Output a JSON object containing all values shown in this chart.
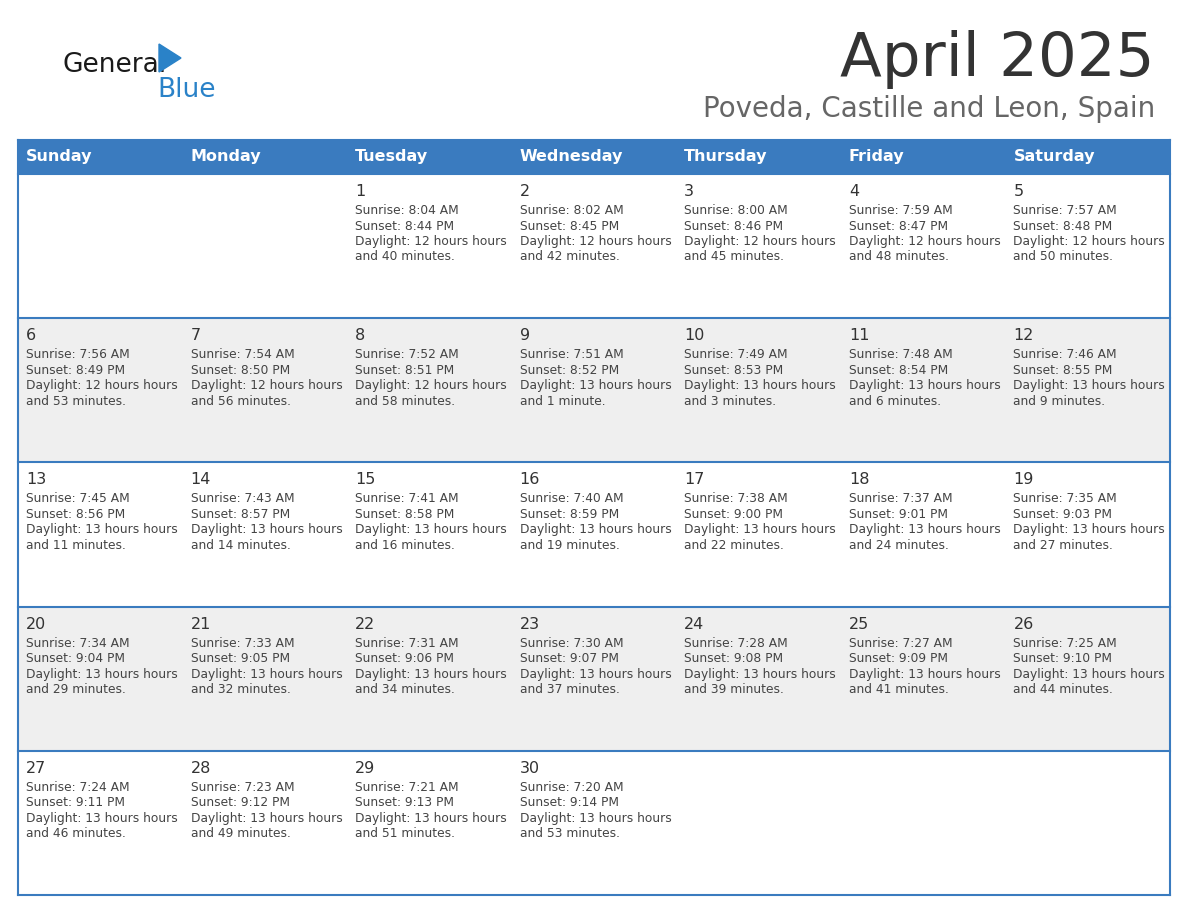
{
  "title": "April 2025",
  "subtitle": "Poveda, Castille and Leon, Spain",
  "days_of_week": [
    "Sunday",
    "Monday",
    "Tuesday",
    "Wednesday",
    "Thursday",
    "Friday",
    "Saturday"
  ],
  "header_bg": "#3a7bbf",
  "header_text": "#ffffff",
  "row_bg_white": "#ffffff",
  "row_bg_gray": "#efefef",
  "border_color": "#3a7bbf",
  "sep_line_color": "#3a7bbf",
  "day_num_color": "#333333",
  "cell_text_color": "#444444",
  "title_color": "#333333",
  "subtitle_color": "#666666",
  "logo_general_color": "#1a1a1a",
  "logo_blue_color": "#2a82c8",
  "logo_triangle_color": "#2a82c8",
  "weeks": [
    {
      "row_bg": "#ffffff",
      "days": [
        {
          "date": "",
          "sunrise": "",
          "sunset": "",
          "daylight": ""
        },
        {
          "date": "",
          "sunrise": "",
          "sunset": "",
          "daylight": ""
        },
        {
          "date": "1",
          "sunrise": "8:04 AM",
          "sunset": "8:44 PM",
          "daylight": "12 hours and 40 minutes."
        },
        {
          "date": "2",
          "sunrise": "8:02 AM",
          "sunset": "8:45 PM",
          "daylight": "12 hours and 42 minutes."
        },
        {
          "date": "3",
          "sunrise": "8:00 AM",
          "sunset": "8:46 PM",
          "daylight": "12 hours and 45 minutes."
        },
        {
          "date": "4",
          "sunrise": "7:59 AM",
          "sunset": "8:47 PM",
          "daylight": "12 hours and 48 minutes."
        },
        {
          "date": "5",
          "sunrise": "7:57 AM",
          "sunset": "8:48 PM",
          "daylight": "12 hours and 50 minutes."
        }
      ]
    },
    {
      "row_bg": "#efefef",
      "days": [
        {
          "date": "6",
          "sunrise": "7:56 AM",
          "sunset": "8:49 PM",
          "daylight": "12 hours and 53 minutes."
        },
        {
          "date": "7",
          "sunrise": "7:54 AM",
          "sunset": "8:50 PM",
          "daylight": "12 hours and 56 minutes."
        },
        {
          "date": "8",
          "sunrise": "7:52 AM",
          "sunset": "8:51 PM",
          "daylight": "12 hours and 58 minutes."
        },
        {
          "date": "9",
          "sunrise": "7:51 AM",
          "sunset": "8:52 PM",
          "daylight": "13 hours and 1 minute."
        },
        {
          "date": "10",
          "sunrise": "7:49 AM",
          "sunset": "8:53 PM",
          "daylight": "13 hours and 3 minutes."
        },
        {
          "date": "11",
          "sunrise": "7:48 AM",
          "sunset": "8:54 PM",
          "daylight": "13 hours and 6 minutes."
        },
        {
          "date": "12",
          "sunrise": "7:46 AM",
          "sunset": "8:55 PM",
          "daylight": "13 hours and 9 minutes."
        }
      ]
    },
    {
      "row_bg": "#ffffff",
      "days": [
        {
          "date": "13",
          "sunrise": "7:45 AM",
          "sunset": "8:56 PM",
          "daylight": "13 hours and 11 minutes."
        },
        {
          "date": "14",
          "sunrise": "7:43 AM",
          "sunset": "8:57 PM",
          "daylight": "13 hours and 14 minutes."
        },
        {
          "date": "15",
          "sunrise": "7:41 AM",
          "sunset": "8:58 PM",
          "daylight": "13 hours and 16 minutes."
        },
        {
          "date": "16",
          "sunrise": "7:40 AM",
          "sunset": "8:59 PM",
          "daylight": "13 hours and 19 minutes."
        },
        {
          "date": "17",
          "sunrise": "7:38 AM",
          "sunset": "9:00 PM",
          "daylight": "13 hours and 22 minutes."
        },
        {
          "date": "18",
          "sunrise": "7:37 AM",
          "sunset": "9:01 PM",
          "daylight": "13 hours and 24 minutes."
        },
        {
          "date": "19",
          "sunrise": "7:35 AM",
          "sunset": "9:03 PM",
          "daylight": "13 hours and 27 minutes."
        }
      ]
    },
    {
      "row_bg": "#efefef",
      "days": [
        {
          "date": "20",
          "sunrise": "7:34 AM",
          "sunset": "9:04 PM",
          "daylight": "13 hours and 29 minutes."
        },
        {
          "date": "21",
          "sunrise": "7:33 AM",
          "sunset": "9:05 PM",
          "daylight": "13 hours and 32 minutes."
        },
        {
          "date": "22",
          "sunrise": "7:31 AM",
          "sunset": "9:06 PM",
          "daylight": "13 hours and 34 minutes."
        },
        {
          "date": "23",
          "sunrise": "7:30 AM",
          "sunset": "9:07 PM",
          "daylight": "13 hours and 37 minutes."
        },
        {
          "date": "24",
          "sunrise": "7:28 AM",
          "sunset": "9:08 PM",
          "daylight": "13 hours and 39 minutes."
        },
        {
          "date": "25",
          "sunrise": "7:27 AM",
          "sunset": "9:09 PM",
          "daylight": "13 hours and 41 minutes."
        },
        {
          "date": "26",
          "sunrise": "7:25 AM",
          "sunset": "9:10 PM",
          "daylight": "13 hours and 44 minutes."
        }
      ]
    },
    {
      "row_bg": "#ffffff",
      "days": [
        {
          "date": "27",
          "sunrise": "7:24 AM",
          "sunset": "9:11 PM",
          "daylight": "13 hours and 46 minutes."
        },
        {
          "date": "28",
          "sunrise": "7:23 AM",
          "sunset": "9:12 PM",
          "daylight": "13 hours and 49 minutes."
        },
        {
          "date": "29",
          "sunrise": "7:21 AM",
          "sunset": "9:13 PM",
          "daylight": "13 hours and 51 minutes."
        },
        {
          "date": "30",
          "sunrise": "7:20 AM",
          "sunset": "9:14 PM",
          "daylight": "13 hours and 53 minutes."
        },
        {
          "date": "",
          "sunrise": "",
          "sunset": "",
          "daylight": ""
        },
        {
          "date": "",
          "sunrise": "",
          "sunset": "",
          "daylight": ""
        },
        {
          "date": "",
          "sunrise": "",
          "sunset": "",
          "daylight": ""
        }
      ]
    }
  ]
}
